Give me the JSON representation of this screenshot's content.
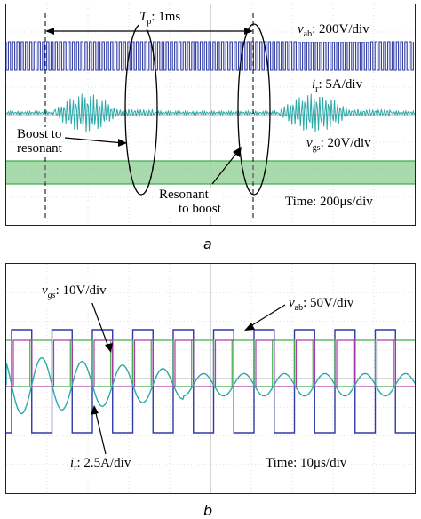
{
  "panels": {
    "a": {
      "caption": "a",
      "period_label_var": "T",
      "period_label_sub": "p",
      "period_label_value": ": 1ms",
      "vab_var": "v",
      "vab_sub": "ab",
      "vab_scale": ": 200V/div",
      "ir_var": "i",
      "ir_sub": "r",
      "ir_scale": ": 5A/div",
      "vgs_var": "v",
      "vgs_sub": "gs",
      "vgs_scale": ": 20V/div",
      "boost_to_resonant_line1": "Boost to",
      "boost_to_resonant_line2": "resonant",
      "resonant_to_boost_line1": "Resonant",
      "resonant_to_boost_line2": "to boost",
      "time_scale": "Time: 200μs/div"
    },
    "b": {
      "caption": "b",
      "vgs_var": "v",
      "vgs_sub": "gs",
      "vgs_scale": ": 10V/div",
      "vab_var": "v",
      "vab_sub": "ab",
      "vab_scale": ": 50V/div",
      "ir_var": "i",
      "ir_sub": "r",
      "ir_scale": ": 2.5A/div",
      "time_scale": "Time: 10μs/div"
    }
  },
  "colors": {
    "vab": "#2f3aa5",
    "ir": "#2aa9a9",
    "vgs": "#3fae4a",
    "vgs2": "#b03aa8",
    "grid": "#c8c8c8"
  },
  "chart_data": [
    {
      "type": "line",
      "panel": "a",
      "series": [
        {
          "name": "vab",
          "scale": "200V/div",
          "behavior": "continuous square-wave switching"
        },
        {
          "name": "ir",
          "scale": "5A/div",
          "behavior": "high-frequency oscillation bursts during resonant mode"
        },
        {
          "name": "vgs",
          "scale": "20V/div",
          "behavior": "continuous gate pulses"
        }
      ],
      "period_ms": 1,
      "time_per_div_us": 200,
      "resonant_intervals_div": [
        [
          1.2,
          3.6
        ],
        [
          6.7,
          9.4
        ]
      ]
    },
    {
      "type": "line",
      "panel": "b",
      "series": [
        {
          "name": "vgs",
          "scale": "10V/div"
        },
        {
          "name": "vab",
          "scale": "50V/div"
        },
        {
          "name": "ir",
          "scale": "2.5A/div"
        }
      ],
      "time_per_div_us": 10
    }
  ]
}
